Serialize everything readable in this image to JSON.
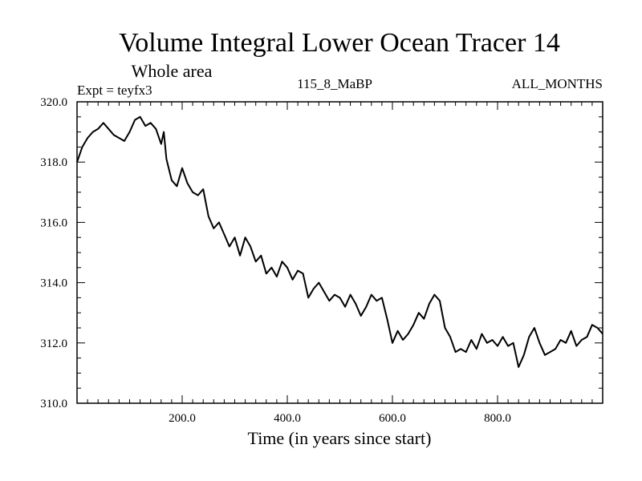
{
  "chart_data": {
    "type": "line",
    "title": "Volume Integral Lower Ocean Tracer 14",
    "subtitle": "Whole area",
    "expt_label": "Expt = teyfx3",
    "center_label": "115_8_MaBP",
    "right_label": "ALL_MONTHS",
    "xlabel": "Time (in years since start)",
    "ylabel": "",
    "xlim": [
      0,
      1000
    ],
    "ylim": [
      310.0,
      320.0
    ],
    "x_ticks": [
      200,
      400,
      600,
      800
    ],
    "x_tick_labels": [
      "200.0",
      "400.0",
      "600.0",
      "800.0"
    ],
    "y_ticks": [
      310,
      312,
      314,
      316,
      318,
      320
    ],
    "y_tick_labels": [
      "310.0",
      "312.0",
      "314.0",
      "316.0",
      "318.0",
      "320.0"
    ],
    "grid": false,
    "series": [
      {
        "name": "Lower Ocean Tracer 14",
        "x": [
          0,
          10,
          20,
          30,
          40,
          50,
          60,
          70,
          80,
          90,
          100,
          110,
          120,
          130,
          140,
          150,
          160,
          165,
          170,
          180,
          190,
          200,
          210,
          220,
          230,
          240,
          250,
          260,
          270,
          280,
          290,
          300,
          310,
          320,
          330,
          340,
          350,
          360,
          370,
          380,
          390,
          400,
          410,
          420,
          430,
          440,
          450,
          460,
          470,
          480,
          490,
          500,
          510,
          520,
          530,
          540,
          550,
          560,
          570,
          580,
          590,
          600,
          610,
          620,
          630,
          640,
          650,
          660,
          670,
          680,
          690,
          700,
          710,
          720,
          730,
          740,
          750,
          760,
          770,
          780,
          790,
          800,
          810,
          820,
          830,
          840,
          850,
          860,
          870,
          880,
          890,
          900,
          910,
          920,
          930,
          940,
          950,
          960,
          970,
          980,
          990,
          1000
        ],
        "values": [
          318.0,
          318.5,
          318.8,
          319.0,
          319.1,
          319.3,
          319.1,
          318.9,
          318.8,
          318.7,
          319.0,
          319.4,
          319.5,
          319.2,
          319.3,
          319.1,
          318.6,
          319.0,
          318.1,
          317.4,
          317.2,
          317.8,
          317.3,
          317.0,
          316.9,
          317.1,
          316.2,
          315.8,
          316.0,
          315.6,
          315.2,
          315.5,
          314.9,
          315.5,
          315.2,
          314.7,
          314.9,
          314.3,
          314.5,
          314.2,
          314.7,
          314.5,
          314.1,
          314.4,
          314.3,
          313.5,
          313.8,
          314.0,
          313.7,
          313.4,
          313.6,
          313.5,
          313.2,
          313.6,
          313.3,
          312.9,
          313.2,
          313.6,
          313.4,
          313.5,
          312.8,
          312.0,
          312.4,
          312.1,
          312.3,
          312.6,
          313.0,
          312.8,
          313.3,
          313.6,
          313.4,
          312.5,
          312.2,
          311.7,
          311.8,
          311.7,
          312.1,
          311.8,
          312.3,
          312.0,
          312.1,
          311.9,
          312.2,
          311.9,
          312.0,
          311.2,
          311.6,
          312.2,
          312.5,
          312.0,
          311.6,
          311.7,
          311.8,
          312.1,
          312.0,
          312.4,
          311.9,
          312.1,
          312.2,
          312.6,
          312.5,
          312.3
        ]
      }
    ]
  }
}
